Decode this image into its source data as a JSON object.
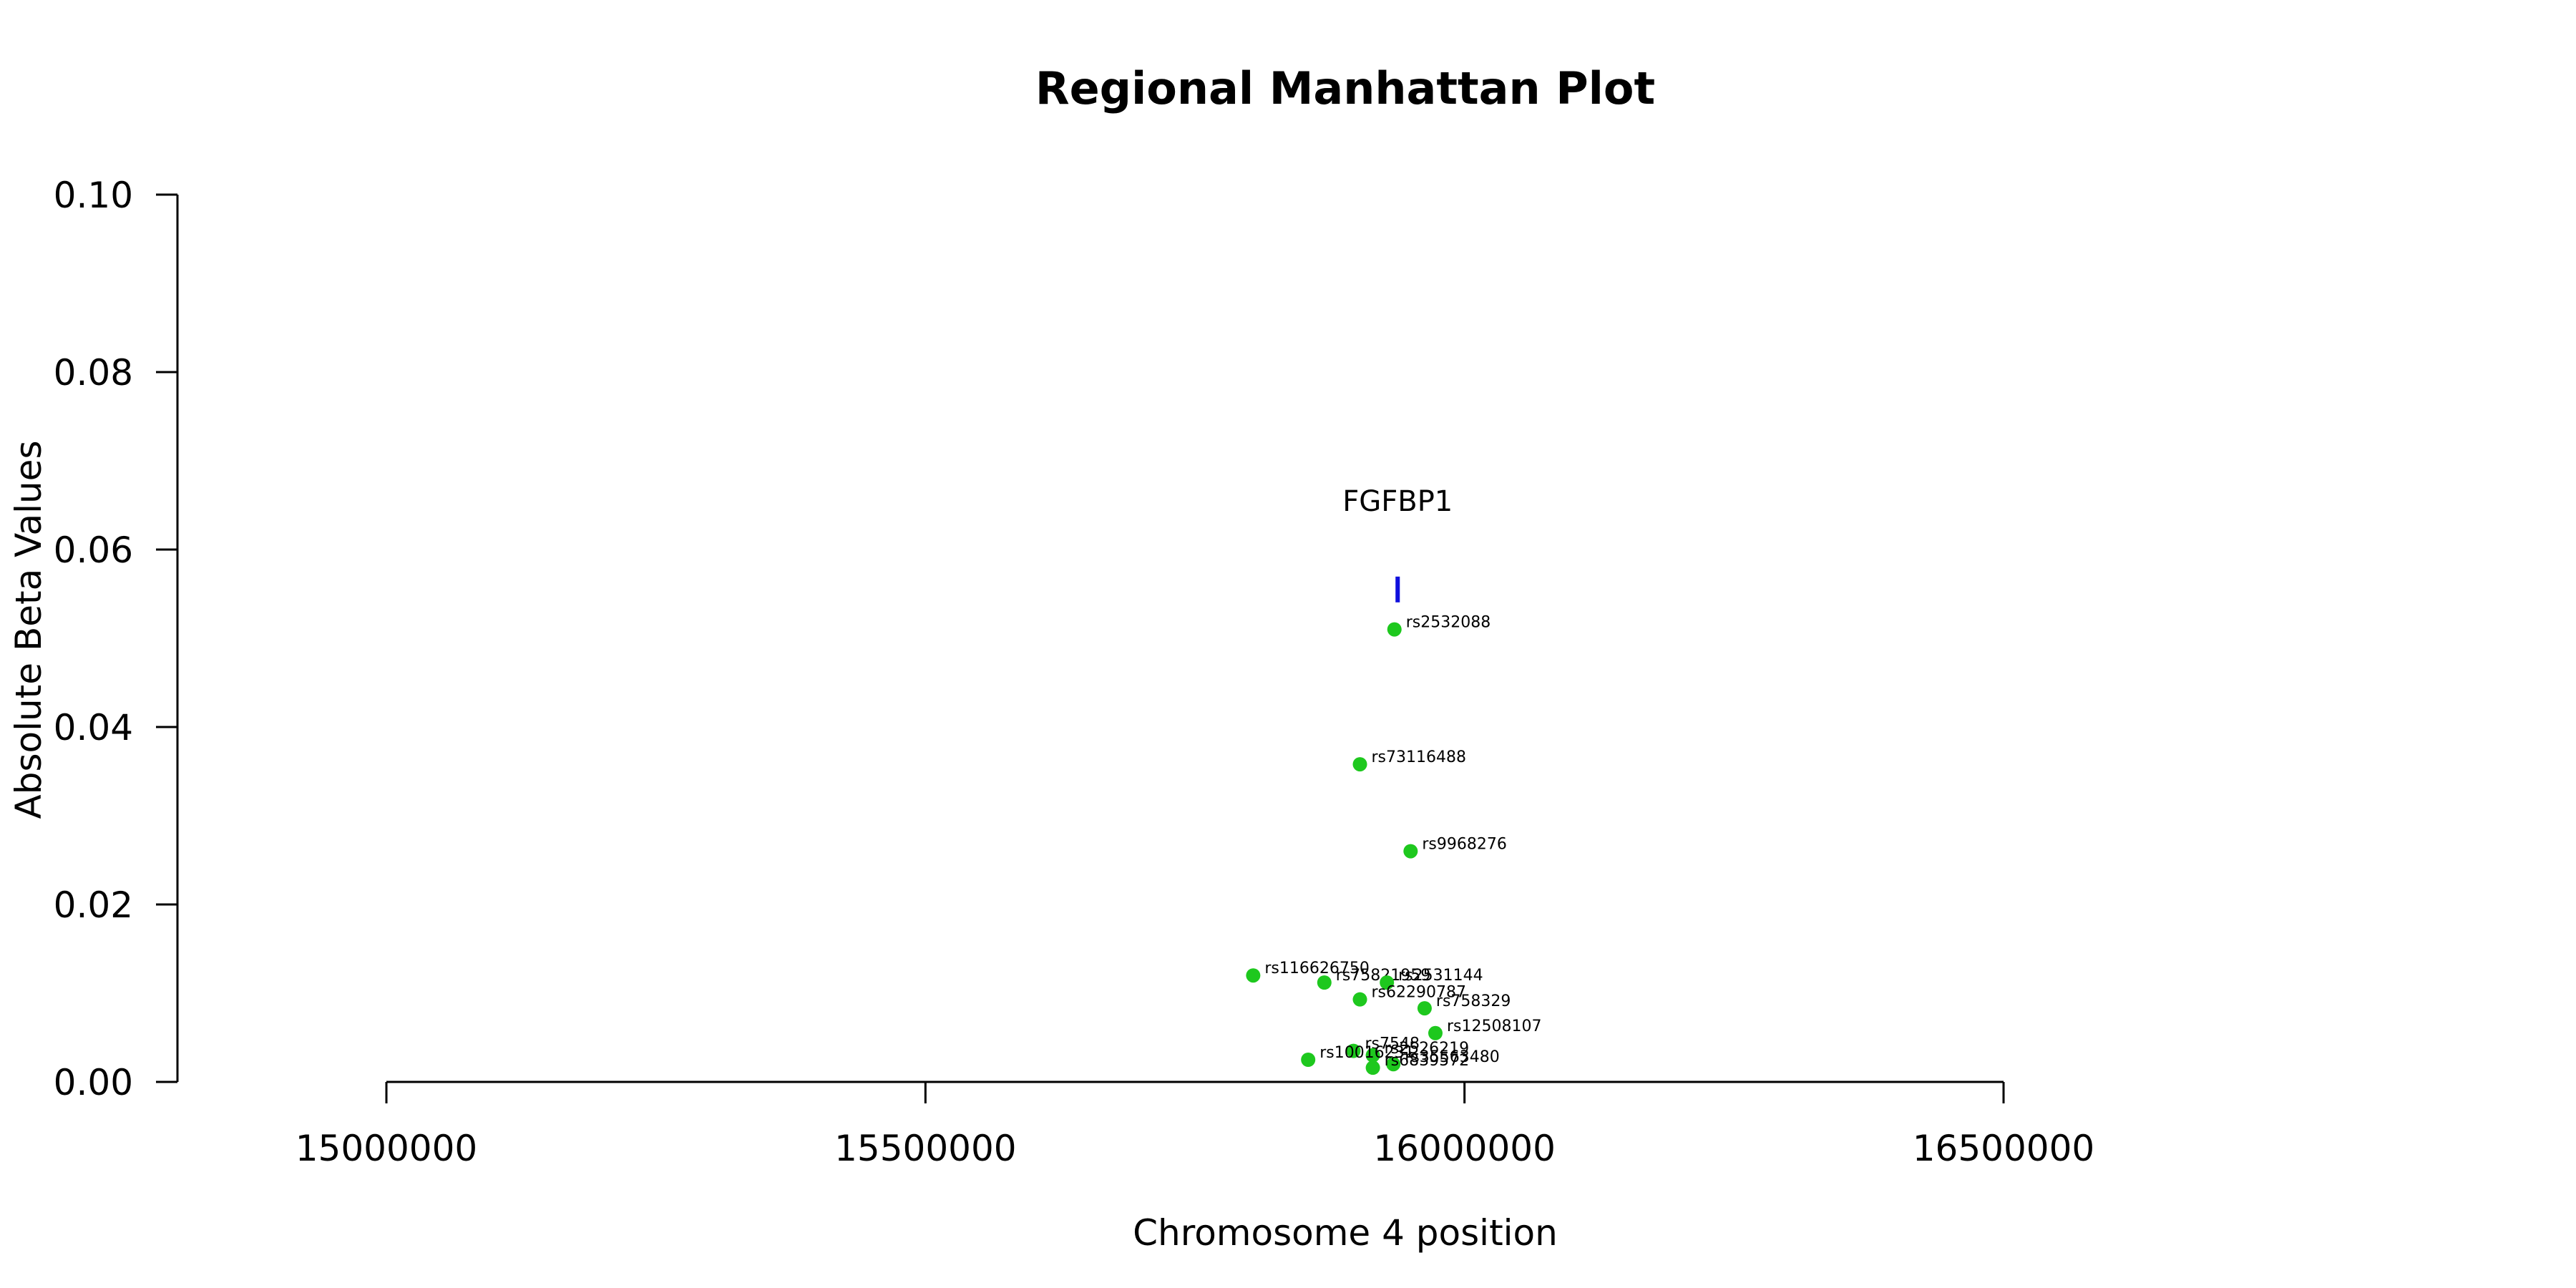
{
  "chart_data": {
    "type": "scatter",
    "title": "Regional Manhattan Plot",
    "xlabel": "Chromosome 4 position",
    "ylabel": "Absolute Beta Values",
    "xlim": [
      15000000,
      16500000
    ],
    "ylim": [
      0,
      0.1
    ],
    "x_ticks": [
      15000000,
      15500000,
      16000000,
      16500000
    ],
    "y_ticks": [
      0.0,
      0.02,
      0.04,
      0.06,
      0.08,
      0.1
    ],
    "x_tick_labels": [
      "15000000",
      "15500000",
      "16000000",
      "16500000"
    ],
    "y_tick_labels": [
      "0.00",
      "0.02",
      "0.04",
      "0.06",
      "0.08",
      "0.10"
    ],
    "grid": false,
    "point_color": "#1ec81e",
    "gene_color": "#1010dd",
    "points": [
      {
        "label": "rs2532088",
        "x": 15935000,
        "y": 0.051
      },
      {
        "label": "rs73116488",
        "x": 15903000,
        "y": 0.0358
      },
      {
        "label": "rs9968276",
        "x": 15950000,
        "y": 0.026
      },
      {
        "label": "rs116626750",
        "x": 15804000,
        "y": 0.012
      },
      {
        "label": "rs75821959",
        "x": 15870000,
        "y": 0.0112
      },
      {
        "label": "rs2531144",
        "x": 15928000,
        "y": 0.0112
      },
      {
        "label": "rs62290787",
        "x": 15903000,
        "y": 0.0093
      },
      {
        "label": "rs758329",
        "x": 15963000,
        "y": 0.0083
      },
      {
        "label": "rs12508107",
        "x": 15973000,
        "y": 0.0055
      },
      {
        "label": "rs7548",
        "x": 15897000,
        "y": 0.0035
      },
      {
        "label": "rs2526219",
        "x": 15915000,
        "y": 0.003
      },
      {
        "label": "rs10016231",
        "x": 15855000,
        "y": 0.0025
      },
      {
        "label": "rs35563480",
        "x": 15934000,
        "y": 0.002
      },
      {
        "label": "rs6839572",
        "x": 15915000,
        "y": 0.0016
      }
    ],
    "genes": [
      {
        "name": "FGFBP1",
        "start": 15936000,
        "end": 15940000,
        "y": 0.0555
      }
    ]
  }
}
